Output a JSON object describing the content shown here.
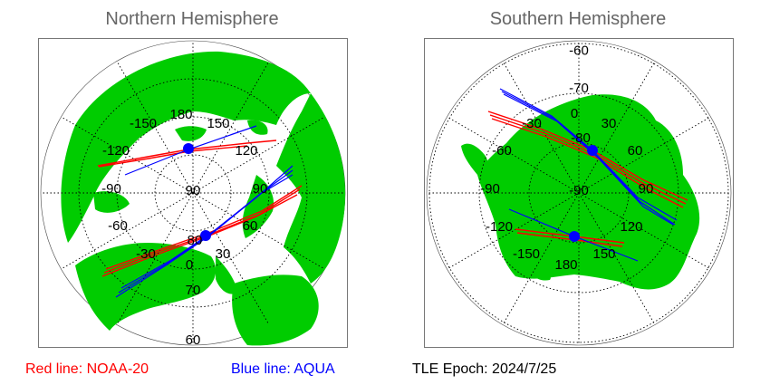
{
  "north": {
    "title": "Northern Hemisphere",
    "lon_labels": [
      "180",
      "150",
      "120",
      "90",
      "60",
      "30",
      "0",
      "-30",
      "-60",
      "-90",
      "-120",
      "-150"
    ],
    "lat_labels": [
      "90",
      "80",
      "70",
      "60"
    ]
  },
  "south": {
    "title": "Southern Hemisphere",
    "lon_labels": [
      "0",
      "30",
      "60",
      "90",
      "120",
      "150",
      "180",
      "-150",
      "-120",
      "-90",
      "-60",
      "-30"
    ],
    "lat_labels": [
      "-90",
      "-80",
      "-70",
      "-60"
    ]
  },
  "legend": {
    "red_label": "Red line: NOAA-20",
    "blue_label": "Blue line: AQUA",
    "epoch_label": "TLE Epoch: 2024/7/25"
  },
  "colors": {
    "land": "#00cc00",
    "ocean": "#ffffff",
    "noaa20": "#ff0000",
    "aqua": "#0000ff",
    "title": "#666666",
    "frame": "#777777"
  },
  "satellites": [
    {
      "name": "NOAA-20",
      "color": "red"
    },
    {
      "name": "AQUA",
      "color": "blue"
    }
  ]
}
